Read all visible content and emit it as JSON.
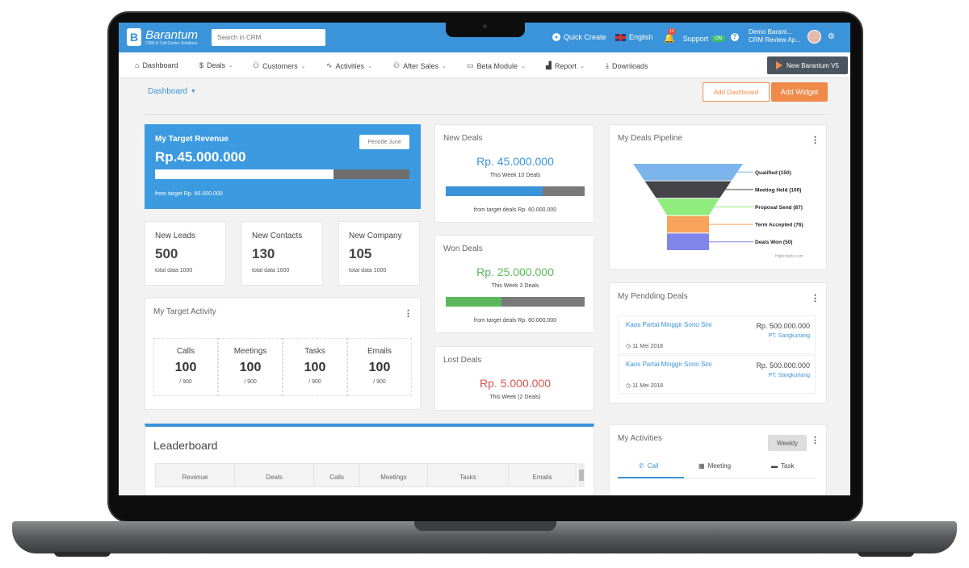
{
  "brand": {
    "name": "Barantum",
    "tagline": "CRM & Call Center Solutions",
    "mark": "B"
  },
  "topbar": {
    "search_placeholder": "Search in CRM",
    "quick_create": "Quick Create",
    "language": "English",
    "notif_count": "12",
    "support": "Support",
    "support_status": "ON",
    "help": "?",
    "user_name": "Demo Barant...",
    "user_role": "CRM Review Ap..."
  },
  "nav": {
    "items": [
      {
        "label": "Dashboard",
        "icon": "⌂",
        "chevron": ""
      },
      {
        "label": "Deals",
        "icon": "$",
        "chevron": "⌄"
      },
      {
        "label": "Customers",
        "icon": "⚇",
        "chevron": "⌄"
      },
      {
        "label": "Activities",
        "icon": "∿",
        "chevron": "⌄"
      },
      {
        "label": "After Sales",
        "icon": "⚇",
        "chevron": "⌄"
      },
      {
        "label": "Beta Module",
        "icon": "▭",
        "chevron": "⌄"
      },
      {
        "label": "Report",
        "icon": "▟",
        "chevron": "⌄"
      },
      {
        "label": "Downloads",
        "icon": "⤓",
        "chevron": ""
      }
    ],
    "v5_button": "New Barantum V5"
  },
  "header": {
    "title": "Dashboard",
    "add_dashboard": "Add Dashboard",
    "add_widget": "Add Widget"
  },
  "target_revenue": {
    "title": "My Target Revenue",
    "value": "Rp.45.000.000",
    "period": "Periode June",
    "progress": 0.7,
    "from_target": "from target Rp. 60.000.000"
  },
  "stats": [
    {
      "label": "New Leads",
      "value": "500",
      "sub": "total data 1000"
    },
    {
      "label": "New Contacts",
      "value": "130",
      "sub": "total data 1000"
    },
    {
      "label": "New Company",
      "value": "105",
      "sub": "total data 1000"
    }
  ],
  "target_activity": {
    "title": "My Target Activity",
    "cells": [
      {
        "label": "Calls",
        "value": "100",
        "sub": "/ 900"
      },
      {
        "label": "Meetings",
        "value": "100",
        "sub": "/ 900"
      },
      {
        "label": "Tasks",
        "value": "100",
        "sub": "/ 900"
      },
      {
        "label": "Emails",
        "value": "100",
        "sub": "/ 900"
      }
    ]
  },
  "new_deals": {
    "title": "New Deals",
    "amount": "Rp. 45.000.000",
    "week": "This Week 10 Deals",
    "progress": 0.7,
    "from": "from target deals Rp. 60.000.000",
    "color": "#3b94d9"
  },
  "won_deals": {
    "title": "Won Deals",
    "amount": "Rp. 25.000.000",
    "week": "This Week 3 Deals",
    "progress": 0.4,
    "from": "from target deals Rp. 60.000.000",
    "color": "#5cb85c"
  },
  "lost_deals": {
    "title": "Lost Deals",
    "amount": "Rp. 5.000.000",
    "week": "This Week (2 Deals)",
    "color": "#d9534f"
  },
  "leaderboard": {
    "title": "Leaderboard",
    "columns": [
      "Revenue",
      "Deals",
      "Calls",
      "Meetings",
      "Tasks",
      "Emails"
    ]
  },
  "pipeline": {
    "title": "My Deals Pipeline",
    "credit": "Highcharts.com",
    "stages": [
      {
        "name": "Qualified (150)",
        "value": 150,
        "color": "#7cb5ec"
      },
      {
        "name": "Meeting Held (100)",
        "value": 100,
        "color": "#434348"
      },
      {
        "name": "Proposal Send (87)",
        "value": 87,
        "color": "#90ed7d"
      },
      {
        "name": "Term Accepted (76)",
        "value": 76,
        "color": "#f7a35c"
      },
      {
        "name": "Deals Won (50)",
        "value": 50,
        "color": "#8085e9"
      }
    ]
  },
  "pending": {
    "title": "My Pendding Deals",
    "items": [
      {
        "name": "Kaos Partai Minggir Sono Sini",
        "price": "Rp. 500.000.000",
        "company": "PT. Sangkuriang",
        "date": "11 Mei 2018"
      },
      {
        "name": "Kaos Partai Minggir Sono Sini",
        "price": "Rp. 500.000.000",
        "company": "PT. Sangkuriang",
        "date": "11 Mei 2018"
      }
    ]
  },
  "my_activities": {
    "title": "My Activities",
    "period": "Weekly",
    "tabs": [
      "Call",
      "Meeting",
      "Task"
    ]
  }
}
